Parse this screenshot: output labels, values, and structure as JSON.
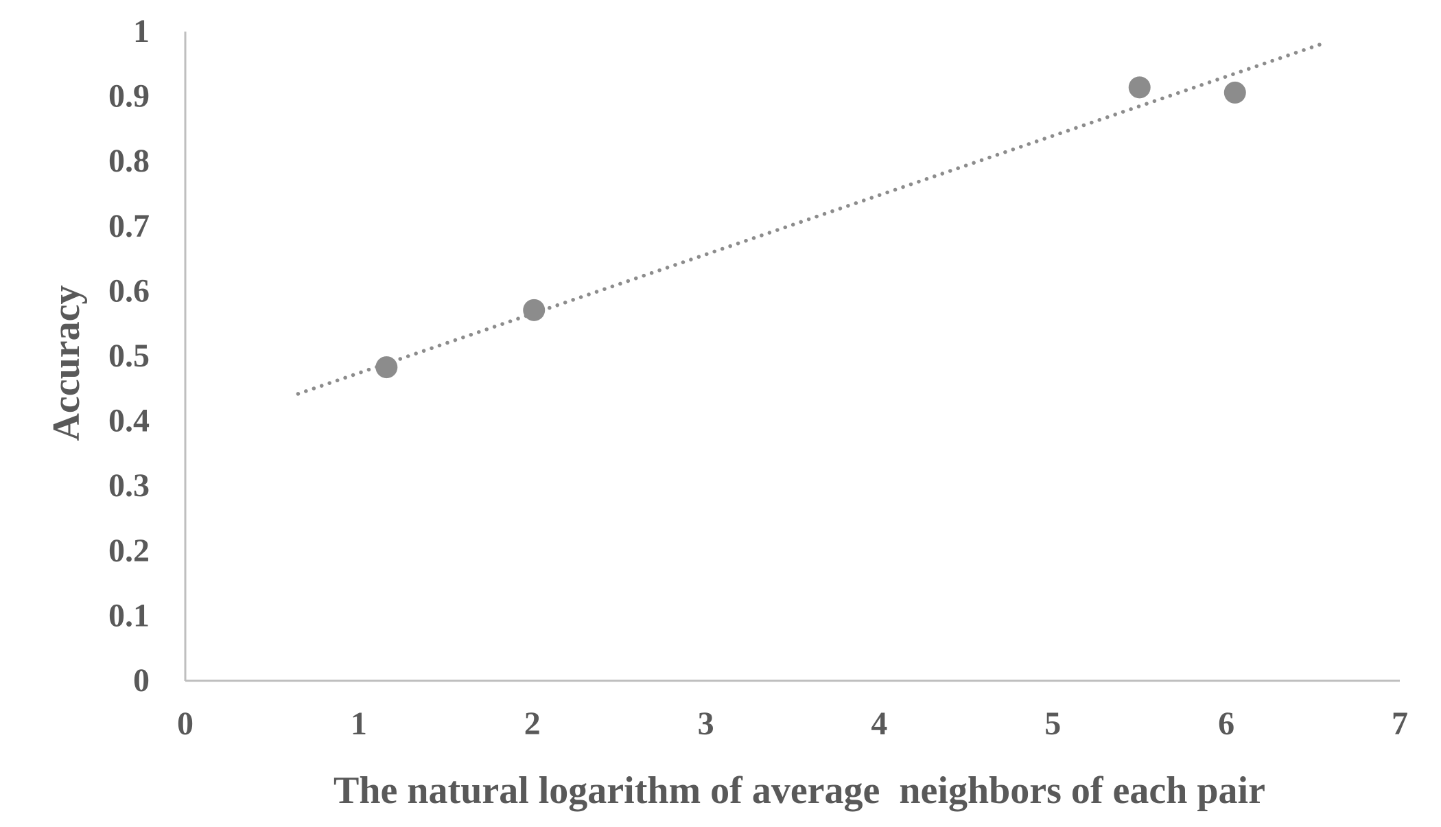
{
  "chart_data": {
    "type": "scatter",
    "xlabel": "The natural logarithm of average  neighbors of each pair",
    "ylabel": "Accuracy",
    "xlim": [
      0,
      7
    ],
    "ylim": [
      0,
      1
    ],
    "x_ticks": [
      0,
      1,
      2,
      3,
      4,
      5,
      6,
      7
    ],
    "y_ticks": [
      0,
      0.1,
      0.2,
      0.3,
      0.4,
      0.5,
      0.6,
      0.7,
      0.8,
      0.9,
      1
    ],
    "grid": false,
    "legend": "none",
    "points": [
      {
        "x": 1.16,
        "y": 0.483
      },
      {
        "x": 2.01,
        "y": 0.571
      },
      {
        "x": 5.5,
        "y": 0.914
      },
      {
        "x": 6.05,
        "y": 0.906
      }
    ],
    "trendline": {
      "type": "linear",
      "style": "dotted",
      "x_start": 0.65,
      "y_start": 0.442,
      "x_end": 6.55,
      "y_end": 0.981
    },
    "colors": {
      "marker": "#8c8c8c",
      "trendline": "#8c8c8c",
      "axis": "#bfbfbf",
      "text": "#595959"
    }
  }
}
